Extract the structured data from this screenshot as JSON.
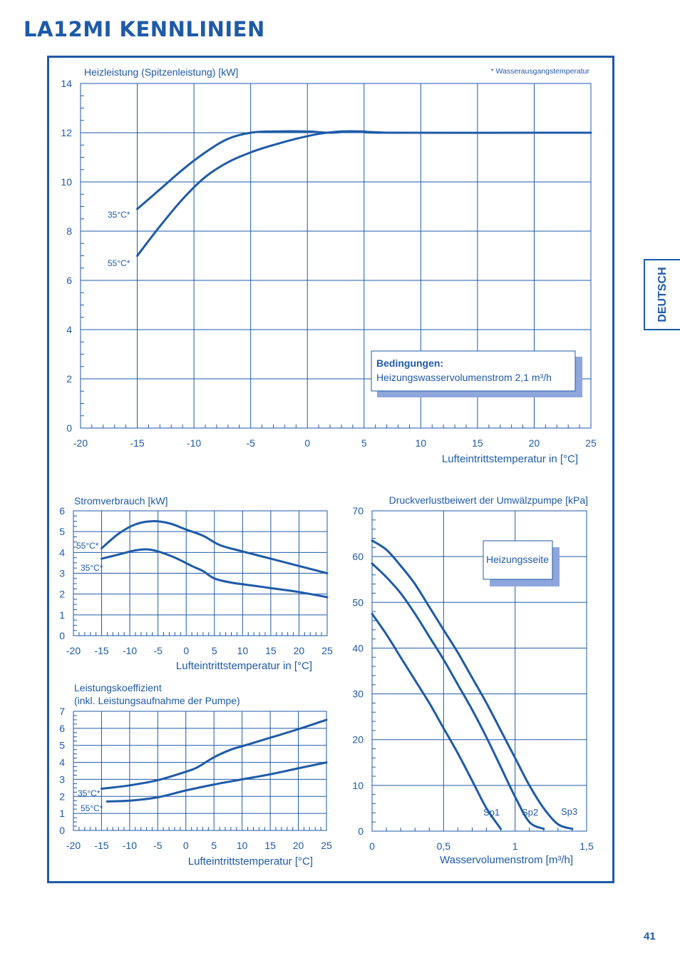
{
  "page": {
    "title": "LA12MI KENNLINIEN",
    "language_tab": "DEUTSCH",
    "page_number": "41"
  },
  "colors": {
    "primary": "#1e5aa8",
    "box_shadow": "#8fa6dc"
  },
  "chart_data": [
    {
      "id": "heating",
      "type": "line",
      "ylabel": "Heizleistung (Spitzenleistung) [kW]",
      "xlabel": "Lufteintrittstemperatur in [°C]",
      "note": "* Wasserausgangstemperatur",
      "xlim": [
        -20,
        25
      ],
      "ylim": [
        0,
        14
      ],
      "xticks": [
        -20,
        -15,
        -10,
        -5,
        0,
        5,
        10,
        15,
        20,
        25
      ],
      "yticks": [
        0,
        2,
        4,
        6,
        8,
        10,
        12,
        14
      ],
      "xtick_labels": [
        "-20",
        "-15",
        "-10",
        "-5",
        "0",
        "5",
        "10",
        "15",
        "20",
        "25"
      ],
      "ytick_labels": [
        "0",
        "2",
        "4",
        "6",
        "8",
        "10",
        "12",
        "14"
      ],
      "grid": true,
      "conditions": {
        "title": "Bedingungen:",
        "text": "Heizungswasservolumenstrom   2,1 m³/h"
      },
      "series": [
        {
          "name": "35°C*",
          "points": [
            [
              -15,
              8.9
            ],
            [
              -13,
              9.7
            ],
            [
              -11,
              10.5
            ],
            [
              -9,
              11.2
            ],
            [
              -7,
              11.75
            ],
            [
              -5,
              12.0
            ],
            [
              -3,
              12.05
            ],
            [
              0,
              12.05
            ],
            [
              2,
              12.0
            ],
            [
              4,
              12.05
            ],
            [
              7,
              12.0
            ]
          ]
        },
        {
          "name": "55°C*",
          "points": [
            [
              -15,
              7.0
            ],
            [
              -13,
              8.2
            ],
            [
              -11,
              9.3
            ],
            [
              -9,
              10.2
            ],
            [
              -7,
              10.8
            ],
            [
              -5,
              11.2
            ],
            [
              -3,
              11.5
            ],
            [
              -1,
              11.75
            ],
            [
              1,
              11.95
            ],
            [
              3,
              12.05
            ],
            [
              5,
              12.05
            ],
            [
              7,
              12.0
            ],
            [
              25,
              12.0
            ]
          ]
        }
      ]
    },
    {
      "id": "power",
      "type": "line",
      "ylabel": "Stromverbrauch [kW]",
      "xlabel": "Lufteintrittstemperatur in [°C]",
      "xlim": [
        -20,
        25
      ],
      "ylim": [
        0,
        6
      ],
      "xticks": [
        -20,
        -15,
        -10,
        -5,
        0,
        5,
        10,
        15,
        20,
        25
      ],
      "yticks": [
        0,
        1,
        2,
        3,
        4,
        5,
        6
      ],
      "xtick_labels": [
        "-20",
        "-15",
        "-10",
        "-5",
        "0",
        "5",
        "10",
        "15",
        "20",
        "25"
      ],
      "ytick_labels": [
        "0",
        "1",
        "2",
        "3",
        "4",
        "5",
        "6"
      ],
      "grid": true,
      "series": [
        {
          "name": "55°C*",
          "points": [
            [
              -15,
              4.2
            ],
            [
              -12,
              4.9
            ],
            [
              -9,
              5.35
            ],
            [
              -6,
              5.5
            ],
            [
              -3,
              5.4
            ],
            [
              0,
              5.1
            ],
            [
              3,
              4.8
            ],
            [
              6,
              4.35
            ],
            [
              10,
              4.05
            ],
            [
              15,
              3.7
            ],
            [
              20,
              3.35
            ],
            [
              25,
              3.0
            ]
          ]
        },
        {
          "name": "35°C*",
          "points": [
            [
              -15,
              3.7
            ],
            [
              -12,
              3.9
            ],
            [
              -9,
              4.1
            ],
            [
              -7,
              4.15
            ],
            [
              -5,
              4.05
            ],
            [
              -2,
              3.75
            ],
            [
              1,
              3.35
            ],
            [
              3,
              3.1
            ],
            [
              5,
              2.75
            ],
            [
              8,
              2.55
            ],
            [
              12,
              2.4
            ],
            [
              16,
              2.25
            ],
            [
              20,
              2.1
            ],
            [
              25,
              1.85
            ]
          ]
        }
      ]
    },
    {
      "id": "cop",
      "type": "line",
      "ylabel": "Leistungskoeffizient",
      "ylabel2": "(inkl. Leistungsaufnahme der Pumpe)",
      "xlabel": "Lufteintrittstemperatur [°C]",
      "xlim": [
        -20,
        25
      ],
      "ylim": [
        0,
        7
      ],
      "xticks": [
        -20,
        -15,
        -10,
        -5,
        0,
        5,
        10,
        15,
        20,
        25
      ],
      "yticks": [
        0,
        1,
        2,
        3,
        4,
        5,
        6,
        7
      ],
      "xtick_labels": [
        "-20",
        "-15",
        "-10",
        "-5",
        "0",
        "5",
        "10",
        "15",
        "20",
        "25"
      ],
      "ytick_labels": [
        "0",
        "1",
        "2",
        "3",
        "4",
        "5",
        "6",
        "7"
      ],
      "grid": true,
      "series": [
        {
          "name": "35°C*",
          "points": [
            [
              -15,
              2.45
            ],
            [
              -10,
              2.65
            ],
            [
              -5,
              2.95
            ],
            [
              0,
              3.45
            ],
            [
              2,
              3.7
            ],
            [
              5,
              4.3
            ],
            [
              8,
              4.75
            ],
            [
              10,
              4.95
            ],
            [
              15,
              5.45
            ],
            [
              20,
              5.95
            ],
            [
              25,
              6.5
            ]
          ]
        },
        {
          "name": "55°C*",
          "points": [
            [
              -14,
              1.7
            ],
            [
              -10,
              1.75
            ],
            [
              -5,
              1.95
            ],
            [
              0,
              2.35
            ],
            [
              5,
              2.7
            ],
            [
              10,
              3.0
            ],
            [
              15,
              3.3
            ],
            [
              20,
              3.65
            ],
            [
              25,
              4.0
            ]
          ]
        }
      ]
    },
    {
      "id": "pump",
      "type": "line",
      "ylabel": "Druckverlustbeiwert der Umwälzpumpe [kPa]",
      "xlabel": "Wasservolumenstrom [m³/h]",
      "xlim": [
        0,
        1.5
      ],
      "ylim": [
        0,
        70
      ],
      "xticks": [
        0,
        0.5,
        1,
        1.5
      ],
      "yticks": [
        0,
        10,
        20,
        30,
        40,
        50,
        60,
        70
      ],
      "xtick_labels": [
        "0",
        "0,5",
        "1",
        "1,5"
      ],
      "ytick_labels": [
        "0",
        "10",
        "20",
        "30",
        "40",
        "50",
        "60",
        "70"
      ],
      "grid": true,
      "label_box": "Heizungsseite",
      "series": [
        {
          "name": "Sp1",
          "points": [
            [
              0,
              47.5
            ],
            [
              0.1,
              43
            ],
            [
              0.2,
              38
            ],
            [
              0.3,
              33
            ],
            [
              0.4,
              28
            ],
            [
              0.5,
              22.5
            ],
            [
              0.6,
              17
            ],
            [
              0.7,
              11
            ],
            [
              0.8,
              5
            ],
            [
              0.9,
              0.5
            ]
          ]
        },
        {
          "name": "Sp2",
          "points": [
            [
              0,
              58.5
            ],
            [
              0.1,
              55.5
            ],
            [
              0.2,
              52
            ],
            [
              0.3,
              47.5
            ],
            [
              0.4,
              42.5
            ],
            [
              0.5,
              37.5
            ],
            [
              0.6,
              32
            ],
            [
              0.7,
              26.5
            ],
            [
              0.8,
              20.5
            ],
            [
              0.9,
              14
            ],
            [
              1.0,
              7.5
            ],
            [
              1.1,
              2
            ],
            [
              1.2,
              0.5
            ]
          ]
        },
        {
          "name": "Sp3",
          "points": [
            [
              0,
              63.5
            ],
            [
              0.1,
              61.5
            ],
            [
              0.2,
              58
            ],
            [
              0.3,
              54
            ],
            [
              0.4,
              49
            ],
            [
              0.5,
              44
            ],
            [
              0.6,
              39
            ],
            [
              0.7,
              33.5
            ],
            [
              0.8,
              28
            ],
            [
              0.9,
              22
            ],
            [
              1.0,
              16
            ],
            [
              1.1,
              10
            ],
            [
              1.2,
              5
            ],
            [
              1.3,
              1.5
            ],
            [
              1.4,
              0.5
            ]
          ]
        }
      ]
    }
  ]
}
